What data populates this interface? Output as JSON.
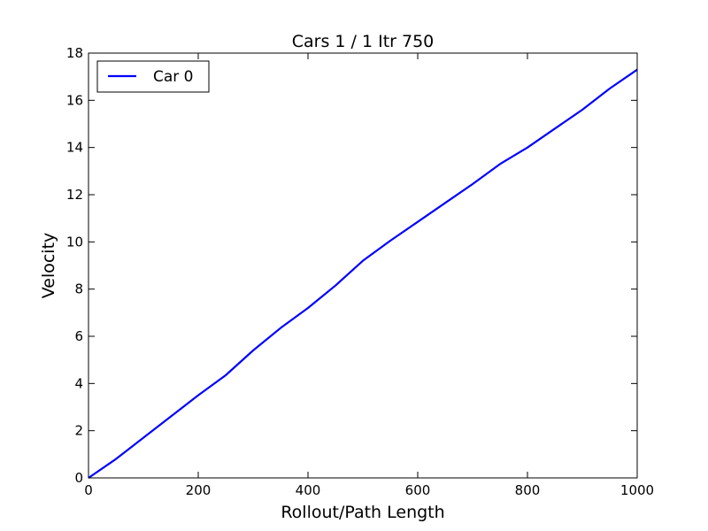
{
  "chart_data": {
    "type": "line",
    "title": "Cars 1 / 1 Itr 750",
    "xlabel": "Rollout/Path Length",
    "ylabel": "Velocity",
    "xlim": [
      0,
      1000
    ],
    "ylim": [
      0,
      18
    ],
    "x_ticks": [
      "0",
      "200",
      "400",
      "600",
      "800",
      "1000"
    ],
    "y_ticks": [
      "0",
      "2",
      "4",
      "6",
      "8",
      "10",
      "12",
      "14",
      "16",
      "18"
    ],
    "grid": false,
    "legend_position": "top-left",
    "series": [
      {
        "name": "Car 0",
        "color": "#0000ff",
        "x": [
          0,
          50,
          100,
          150,
          200,
          250,
          300,
          350,
          400,
          450,
          500,
          550,
          600,
          650,
          700,
          750,
          800,
          850,
          900,
          950,
          1000
        ],
        "y": [
          0,
          0.8,
          1.7,
          2.6,
          3.5,
          4.35,
          5.4,
          6.35,
          7.2,
          8.15,
          9.2,
          10.05,
          10.85,
          11.65,
          12.45,
          13.3,
          14.0,
          14.8,
          15.6,
          16.5,
          17.3
        ]
      }
    ]
  }
}
